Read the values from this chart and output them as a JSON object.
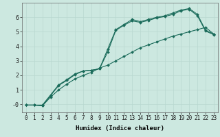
{
  "xlabel": "Humidex (Indice chaleur)",
  "ylabel": "",
  "bg_color": "#cce8e0",
  "grid_color": "#b8d8d0",
  "line_color": "#1a6b5a",
  "xlim": [
    -0.5,
    23.5
  ],
  "ylim": [
    -0.55,
    7.0
  ],
  "xticks": [
    0,
    1,
    2,
    3,
    4,
    5,
    6,
    7,
    8,
    9,
    10,
    11,
    12,
    13,
    14,
    15,
    16,
    17,
    18,
    19,
    20,
    21,
    22,
    23
  ],
  "yticks": [
    0,
    1,
    2,
    3,
    4,
    5,
    6
  ],
  "ytick_labels": [
    "-0",
    "1",
    "2",
    "3",
    "4",
    "5",
    "6"
  ],
  "line1_x": [
    0,
    1,
    2,
    3,
    4,
    5,
    6,
    7,
    8,
    9,
    10,
    11,
    12,
    13,
    14,
    15,
    16,
    17,
    18,
    19,
    20,
    21,
    22,
    23
  ],
  "line1_y": [
    -0.05,
    -0.05,
    -0.05,
    0.65,
    1.35,
    1.7,
    2.1,
    2.3,
    2.35,
    2.45,
    3.8,
    5.15,
    5.5,
    5.85,
    5.7,
    5.85,
    6.0,
    6.1,
    6.3,
    6.5,
    6.6,
    6.2,
    5.1,
    4.85
  ],
  "line2_x": [
    0,
    1,
    2,
    3,
    4,
    5,
    6,
    7,
    8,
    9,
    10,
    11,
    12,
    13,
    14,
    15,
    16,
    17,
    18,
    19,
    20,
    21,
    22,
    23
  ],
  "line2_y": [
    -0.05,
    -0.05,
    -0.1,
    0.6,
    1.3,
    1.65,
    2.05,
    2.3,
    2.35,
    2.45,
    3.6,
    5.1,
    5.45,
    5.75,
    5.65,
    5.78,
    5.95,
    6.05,
    6.2,
    6.45,
    6.55,
    6.1,
    5.05,
    4.8
  ],
  "line3_x": [
    0,
    1,
    2,
    3,
    4,
    5,
    6,
    7,
    8,
    9,
    10,
    11,
    12,
    13,
    14,
    15,
    16,
    17,
    18,
    19,
    20,
    21,
    22,
    23
  ],
  "line3_y": [
    -0.05,
    -0.05,
    -0.1,
    0.5,
    1.0,
    1.4,
    1.75,
    2.0,
    2.2,
    2.5,
    2.7,
    3.0,
    3.3,
    3.6,
    3.9,
    4.1,
    4.3,
    4.5,
    4.7,
    4.85,
    5.0,
    5.15,
    5.3,
    4.85
  ],
  "marker": "D",
  "markersize": 2.0,
  "linewidth": 0.8,
  "fontsize_label": 6.5,
  "fontsize_tick": 5.5
}
